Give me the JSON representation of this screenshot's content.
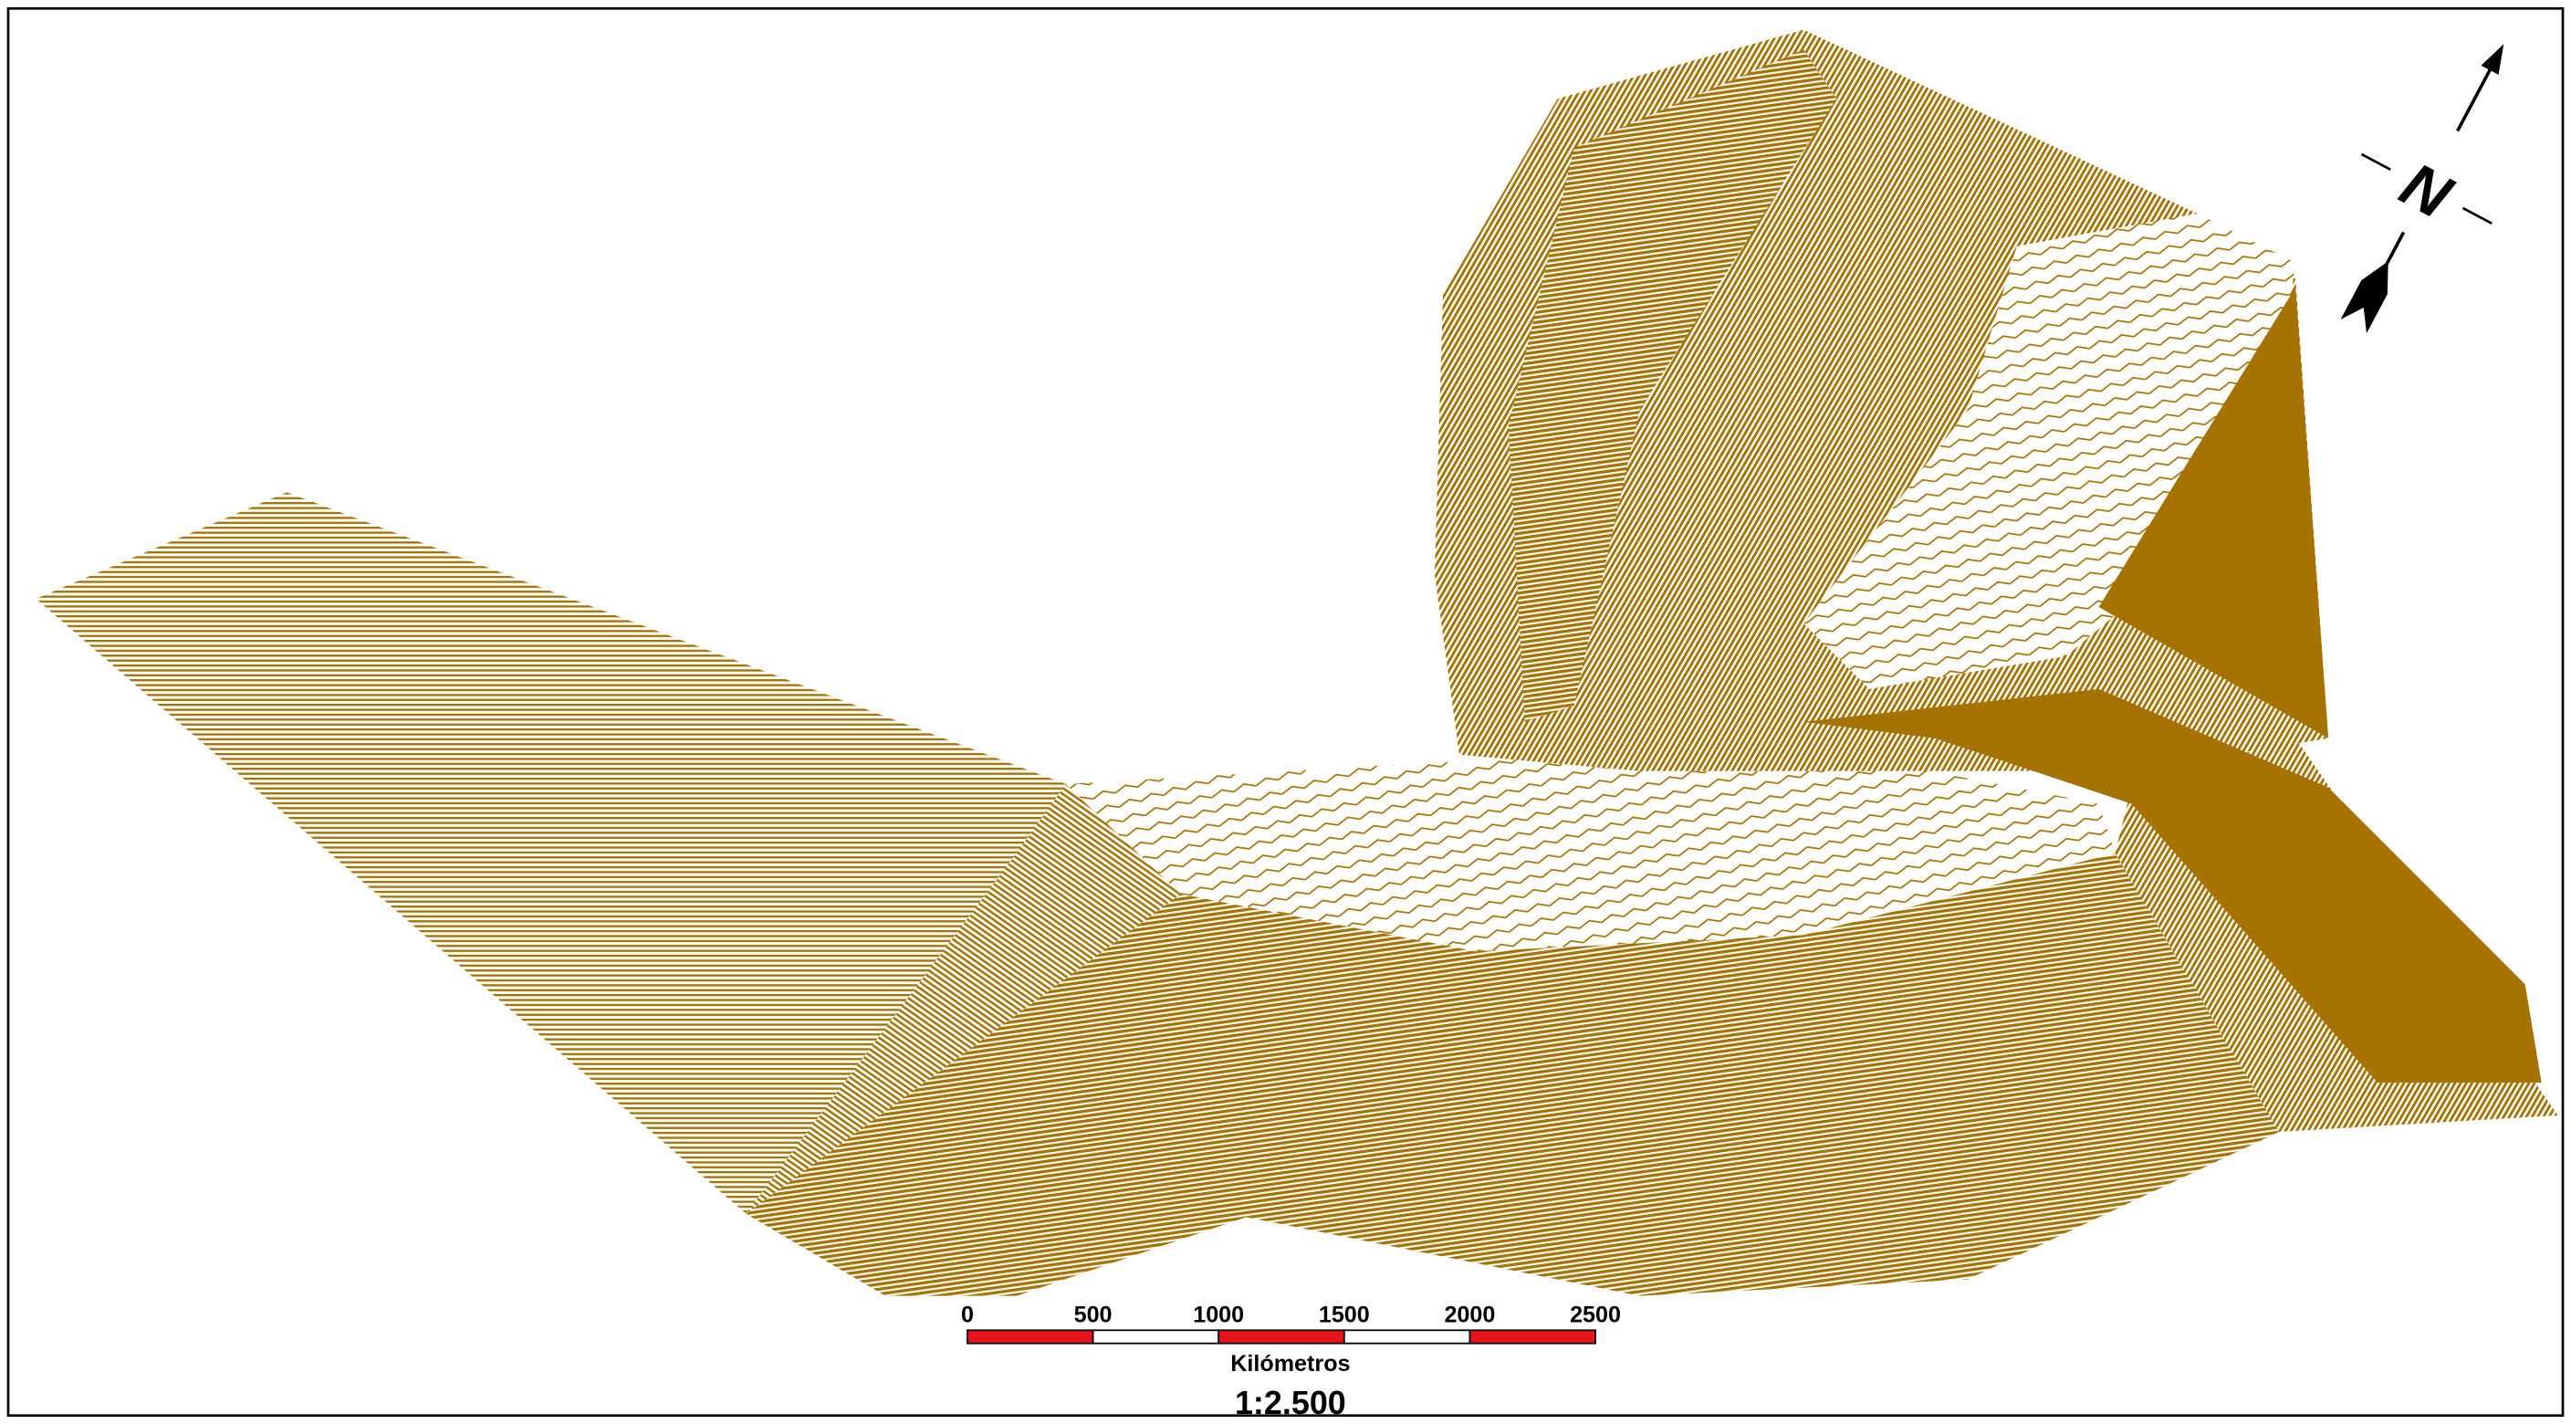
{
  "map": {
    "north_label": "N",
    "scale_bar": {
      "ticks": [
        "0",
        "500",
        "1000",
        "1500",
        "2000",
        "2500"
      ],
      "unit": "Kilómetros"
    },
    "scale": "1:2.500"
  }
}
